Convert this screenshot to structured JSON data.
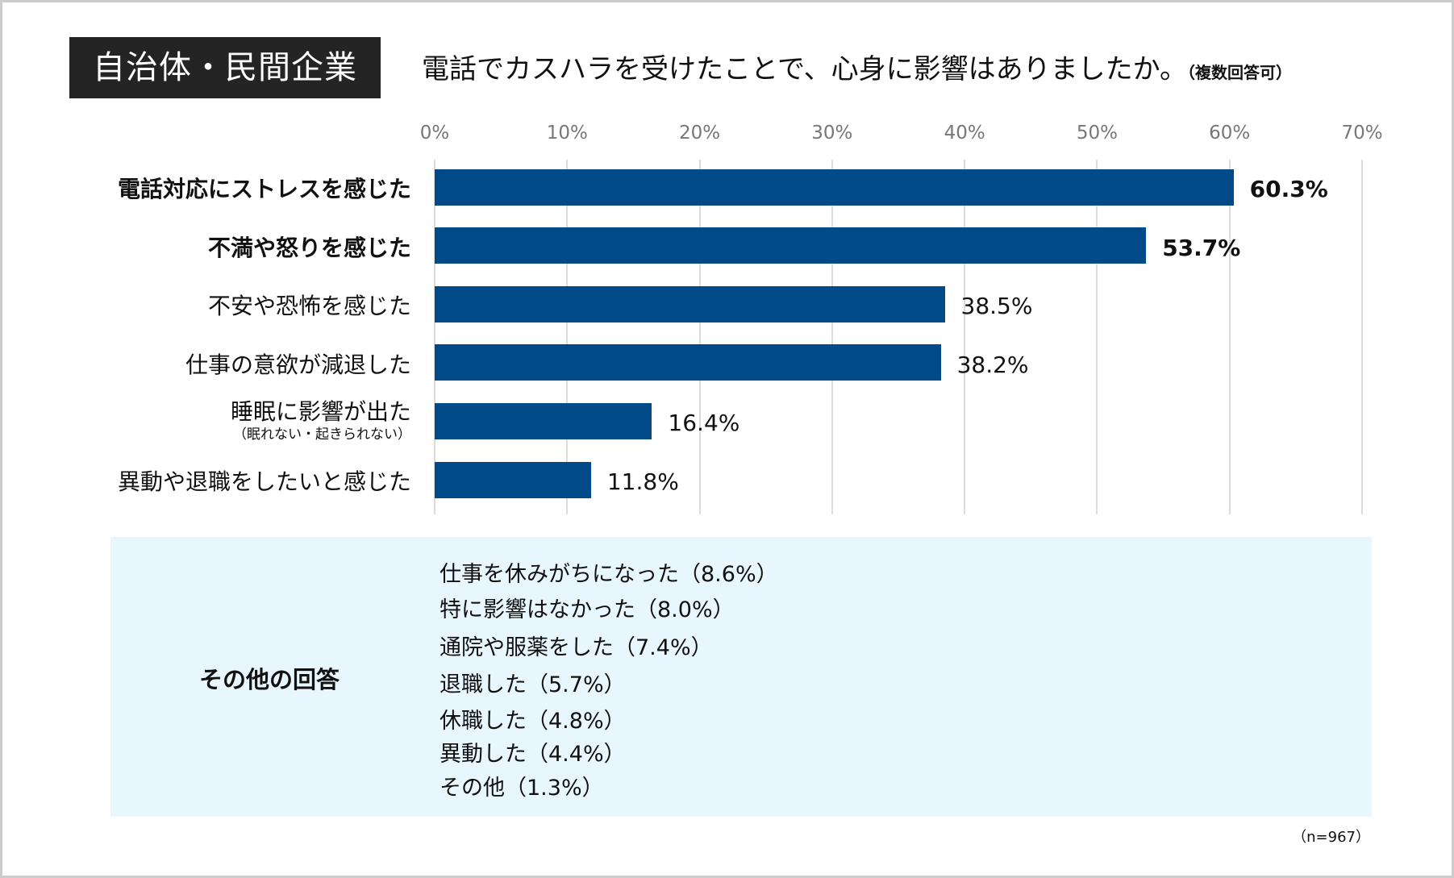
{
  "header": {
    "tag": "自治体・民間企業",
    "question": "電話でカスハラを受けたことで、心身に影響はありましたか。",
    "note": "（複数回答可）"
  },
  "chart_data": {
    "type": "bar",
    "orientation": "horizontal",
    "xlim": [
      0,
      70
    ],
    "x_ticks": [
      "0%",
      "10%",
      "20%",
      "30%",
      "40%",
      "50%",
      "60%",
      "70%"
    ],
    "grid": true,
    "bar_color": "#004a87",
    "categories": [
      {
        "label": "電話対応にストレスを感じた",
        "sub": "",
        "value": 60.3,
        "value_label": "60.3%",
        "highlight": true
      },
      {
        "label": "不満や怒りを感じた",
        "sub": "",
        "value": 53.7,
        "value_label": "53.7%",
        "highlight": true
      },
      {
        "label": "不安や恐怖を感じた",
        "sub": "",
        "value": 38.5,
        "value_label": "38.5%",
        "highlight": false
      },
      {
        "label": "仕事の意欲が減退した",
        "sub": "",
        "value": 38.2,
        "value_label": "38.2%",
        "highlight": false
      },
      {
        "label": "睡眠に影響が出た",
        "sub": "（眠れない・起きられない）",
        "value": 16.4,
        "value_label": "16.4%",
        "highlight": false
      },
      {
        "label": "異動や退職をしたいと感じた",
        "sub": "",
        "value": 11.8,
        "value_label": "11.8%",
        "highlight": false
      }
    ]
  },
  "other": {
    "heading": "その他の回答",
    "background": "#e8f6fd",
    "items": [
      "仕事を休みがちになった（8.6%）",
      "特に影響はなかった（8.0%）",
      "通院や服薬をした（7.4%）",
      "退職した（5.7%）",
      "休職した（4.8%）",
      "異動した（4.4%）",
      "その他（1.3%）"
    ]
  },
  "sample": "（n=967）"
}
